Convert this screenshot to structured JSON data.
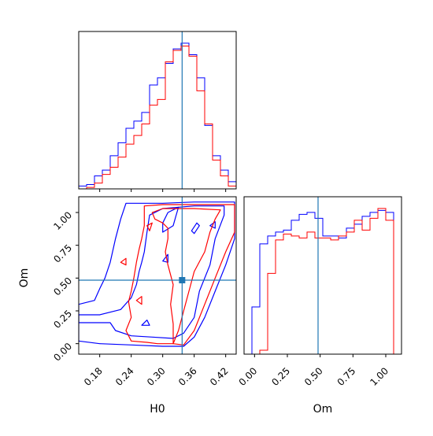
{
  "colors": {
    "series_a": "#0000ff",
    "series_b": "#ff0000",
    "truth": "#1f77b4",
    "axis": "#000000"
  },
  "chart_data": [
    {
      "type": "histogram",
      "panel": "H0 marginal",
      "x_range": [
        0.14,
        0.44
      ],
      "truth": 0.337,
      "bins": [
        0.14,
        0.155,
        0.17,
        0.185,
        0.2,
        0.215,
        0.23,
        0.245,
        0.26,
        0.275,
        0.29,
        0.305,
        0.32,
        0.335,
        0.35,
        0.365,
        0.38,
        0.395,
        0.41,
        0.425,
        0.44
      ],
      "series": [
        {
          "color": "#0000ff",
          "counts": [
            2,
            3,
            9,
            13,
            23,
            32,
            42,
            47,
            53,
            72,
            77,
            87,
            97,
            101,
            93,
            77,
            44,
            23,
            13,
            5
          ]
        },
        {
          "color": "#ff0000",
          "counts": [
            0,
            1,
            4,
            10,
            15,
            22,
            31,
            37,
            45,
            58,
            62,
            88,
            96,
            99,
            92,
            68,
            45,
            20,
            9,
            2
          ]
        }
      ]
    },
    {
      "type": "contour",
      "panel": "H0 vs Om",
      "xlabel": "H0",
      "ylabel": "Om",
      "x_range": [
        0.14,
        0.44
      ],
      "y_range": [
        -0.08,
        1.12
      ],
      "xticks": [
        "0.18",
        "0.24",
        "0.30",
        "0.36",
        "0.42"
      ],
      "xtick_values": [
        0.18,
        0.24,
        0.3,
        0.36,
        0.42
      ],
      "yticks": [
        "0.00",
        "0.25",
        "0.50",
        "0.75",
        "1.00"
      ],
      "ytick_values": [
        0.0,
        0.25,
        0.5,
        0.75,
        1.0
      ],
      "truth": {
        "x": 0.337,
        "y": 0.484
      },
      "series": [
        {
          "color": "#0000ff",
          "contours": [
            [
              [
                0.14,
                0.02
              ],
              [
                0.18,
                0.0
              ],
              [
                0.24,
                -0.01
              ],
              [
                0.3,
                -0.02
              ],
              [
                0.34,
                -0.02
              ],
              [
                0.36,
                0.05
              ],
              [
                0.38,
                0.2
              ],
              [
                0.4,
                0.4
              ],
              [
                0.42,
                0.6
              ],
              [
                0.437,
                0.8
              ],
              [
                0.437,
                1.08
              ],
              [
                0.36,
                1.08
              ],
              [
                0.3,
                1.07
              ],
              [
                0.25,
                1.07
              ],
              [
                0.23,
                1.07
              ],
              [
                0.22,
                0.95
              ],
              [
                0.21,
                0.8
              ],
              [
                0.2,
                0.62
              ],
              [
                0.19,
                0.5
              ],
              [
                0.18,
                0.42
              ],
              [
                0.17,
                0.33
              ],
              [
                0.14,
                0.3
              ]
            ],
            [
              [
                0.14,
                0.16
              ],
              [
                0.2,
                0.16
              ],
              [
                0.21,
                0.1
              ],
              [
                0.24,
                0.06
              ],
              [
                0.28,
                0.05
              ],
              [
                0.32,
                0.04
              ],
              [
                0.34,
                0.08
              ],
              [
                0.36,
                0.2
              ],
              [
                0.37,
                0.4
              ],
              [
                0.39,
                0.6
              ],
              [
                0.4,
                0.8
              ],
              [
                0.417,
                0.98
              ],
              [
                0.417,
                1.05
              ],
              [
                0.36,
                1.05
              ],
              [
                0.33,
                1.04
              ],
              [
                0.3,
                1.03
              ],
              [
                0.275,
                0.98
              ],
              [
                0.27,
                0.85
              ],
              [
                0.265,
                0.7
              ],
              [
                0.26,
                0.62
              ],
              [
                0.255,
                0.55
              ],
              [
                0.25,
                0.45
              ],
              [
                0.24,
                0.35
              ],
              [
                0.22,
                0.26
              ],
              [
                0.18,
                0.22
              ],
              [
                0.14,
                0.22
              ]
            ],
            [
              [
                0.3,
                0.85
              ],
              [
                0.32,
                0.9
              ],
              [
                0.325,
                0.97
              ],
              [
                0.33,
                1.04
              ],
              [
                0.31,
                1.0
              ],
              [
                0.3,
                0.92
              ]
            ],
            [
              [
                0.355,
                0.86
              ],
              [
                0.365,
                0.92
              ],
              [
                0.37,
                0.9
              ],
              [
                0.36,
                0.84
              ]
            ],
            [
              [
                0.39,
                0.9
              ],
              [
                0.4,
                0.93
              ],
              [
                0.4,
                0.88
              ]
            ],
            [
              [
                0.3,
                0.63
              ],
              [
                0.31,
                0.68
              ],
              [
                0.31,
                0.62
              ]
            ],
            [
              [
                0.26,
                0.14
              ],
              [
                0.27,
                0.18
              ],
              [
                0.275,
                0.14
              ]
            ]
          ]
        },
        {
          "color": "#ff0000",
          "contours": [
            [
              [
                0.24,
                0.02
              ],
              [
                0.27,
                0.01
              ],
              [
                0.29,
                0.0
              ],
              [
                0.32,
                0.0
              ],
              [
                0.34,
                -0.01
              ],
              [
                0.36,
                0.1
              ],
              [
                0.38,
                0.3
              ],
              [
                0.4,
                0.5
              ],
              [
                0.42,
                0.7
              ],
              [
                0.437,
                0.85
              ],
              [
                0.437,
                1.06
              ],
              [
                0.4,
                1.06
              ],
              [
                0.36,
                1.06
              ],
              [
                0.3,
                1.06
              ],
              [
                0.265,
                1.05
              ],
              [
                0.265,
                0.9
              ],
              [
                0.26,
                0.8
              ],
              [
                0.255,
                0.72
              ],
              [
                0.25,
                0.62
              ],
              [
                0.245,
                0.5
              ],
              [
                0.24,
                0.4
              ],
              [
                0.235,
                0.32
              ],
              [
                0.24,
                0.2
              ],
              [
                0.23,
                0.1
              ]
            ],
            [
              [
                0.32,
                0.0
              ],
              [
                0.33,
                0.1
              ],
              [
                0.34,
                0.25
              ],
              [
                0.35,
                0.4
              ],
              [
                0.36,
                0.55
              ],
              [
                0.38,
                0.7
              ],
              [
                0.39,
                0.85
              ],
              [
                0.4,
                0.95
              ],
              [
                0.41,
                1.02
              ],
              [
                0.36,
                1.03
              ],
              [
                0.3,
                1.03
              ],
              [
                0.28,
                1.0
              ],
              [
                0.285,
                0.95
              ],
              [
                0.3,
                0.92
              ],
              [
                0.31,
                0.88
              ],
              [
                0.31,
                0.8
              ],
              [
                0.305,
                0.7
              ],
              [
                0.31,
                0.6
              ],
              [
                0.32,
                0.45
              ],
              [
                0.315,
                0.3
              ],
              [
                0.32,
                0.15
              ]
            ],
            [
              [
                0.27,
                0.9
              ],
              [
                0.28,
                0.92
              ],
              [
                0.275,
                0.86
              ]
            ],
            [
              [
                0.22,
                0.62
              ],
              [
                0.23,
                0.65
              ],
              [
                0.23,
                0.6
              ]
            ],
            [
              [
                0.25,
                0.33
              ],
              [
                0.26,
                0.36
              ],
              [
                0.26,
                0.3
              ]
            ]
          ]
        }
      ]
    },
    {
      "type": "histogram",
      "panel": "Om marginal",
      "xlabel": "Om",
      "x_range": [
        -0.08,
        1.12
      ],
      "xticks": [
        "0.00",
        "0.25",
        "0.50",
        "0.75",
        "1.00"
      ],
      "xtick_values": [
        0.0,
        0.25,
        0.5,
        0.75,
        1.0
      ],
      "truth": 0.484,
      "bins": [
        -0.08,
        -0.02,
        0.04,
        0.1,
        0.16,
        0.22,
        0.28,
        0.34,
        0.4,
        0.46,
        0.52,
        0.58,
        0.64,
        0.7,
        0.76,
        0.82,
        0.88,
        0.94,
        1.0,
        1.06,
        1.12
      ],
      "series": [
        {
          "color": "#0000ff",
          "counts": [
            0,
            24,
            56,
            60,
            62,
            63,
            68,
            71,
            72,
            69,
            60,
            60,
            59,
            64,
            66,
            70,
            72,
            73,
            72,
            0
          ]
        },
        {
          "color": "#ff0000",
          "counts": [
            0,
            0,
            2,
            41,
            58,
            61,
            60,
            59,
            62,
            59,
            59,
            58,
            60,
            62,
            68,
            63,
            69,
            74,
            68,
            0
          ]
        }
      ]
    }
  ]
}
